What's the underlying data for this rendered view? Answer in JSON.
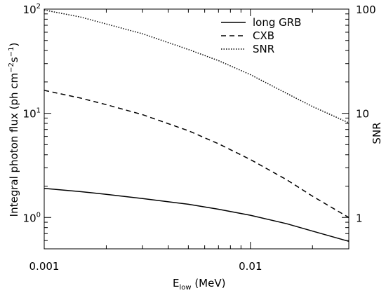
{
  "chart_data": {
    "type": "line",
    "xlabel": {
      "main": "E",
      "sub": "low",
      "rest": " (MeV)"
    },
    "ylabel": {
      "pre": "Integral photon flux (ph cm",
      "sup1": "−2",
      "mid": "s",
      "sup2": "−1",
      "post": ")"
    },
    "y2label": "SNR",
    "xscale": "log",
    "yscale": "log",
    "xlim": [
      0.001,
      0.03
    ],
    "ylim": [
      0.5,
      100
    ],
    "y2lim": [
      0.5,
      100
    ],
    "x_ticks": [
      {
        "value": 0.001,
        "label": "0.001"
      },
      {
        "value": 0.01,
        "label": "0.01"
      }
    ],
    "y_ticks": [
      {
        "value": 1,
        "base": "10",
        "exp": "0"
      },
      {
        "value": 10,
        "base": "10",
        "exp": "1"
      },
      {
        "value": 100,
        "base": "10",
        "exp": "2"
      }
    ],
    "y2_ticks": [
      {
        "value": 1,
        "label": "1"
      },
      {
        "value": 10,
        "label": "10"
      },
      {
        "value": 100,
        "label": "100"
      }
    ],
    "legend_position": "top-right",
    "series": [
      {
        "name": "long GRB",
        "axis": "left",
        "dash": "solid",
        "x": [
          0.001,
          0.0015,
          0.002,
          0.003,
          0.005,
          0.007,
          0.01,
          0.015,
          0.02,
          0.03
        ],
        "y": [
          1.9,
          1.77,
          1.67,
          1.52,
          1.34,
          1.2,
          1.05,
          0.87,
          0.74,
          0.59
        ]
      },
      {
        "name": "CXB",
        "axis": "left",
        "dash": "dashed",
        "x": [
          0.001,
          0.0015,
          0.002,
          0.003,
          0.005,
          0.007,
          0.01,
          0.015,
          0.02,
          0.03
        ],
        "y": [
          16.6,
          14.0,
          12.1,
          9.7,
          6.8,
          5.1,
          3.6,
          2.3,
          1.6,
          1.0
        ]
      },
      {
        "name": "SNR",
        "axis": "right",
        "dash": "dotted",
        "x": [
          0.001,
          0.0015,
          0.002,
          0.003,
          0.005,
          0.007,
          0.01,
          0.015,
          0.02,
          0.03
        ],
        "y": [
          98,
          84,
          72,
          58,
          41,
          32,
          23.5,
          15.5,
          11.6,
          8.1
        ]
      }
    ]
  }
}
